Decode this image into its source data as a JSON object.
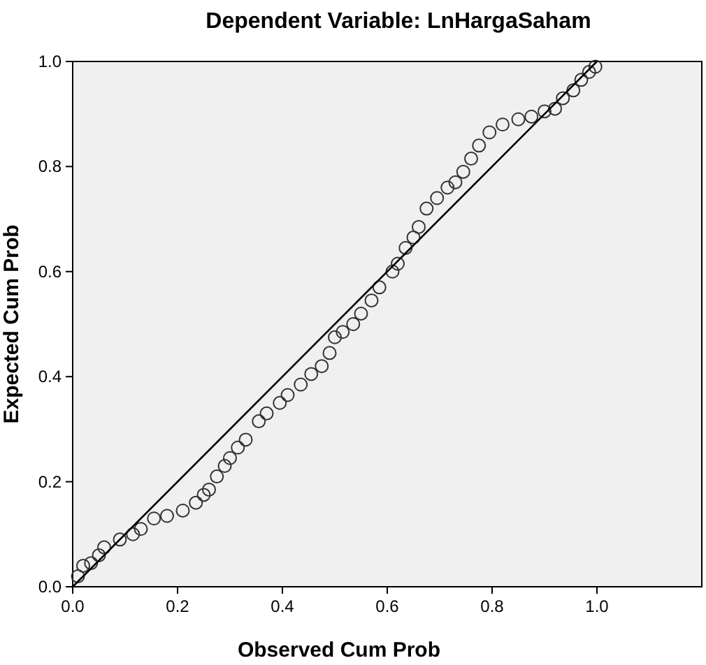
{
  "chart_data": {
    "type": "scatter",
    "title": "Dependent Variable: LnHargaSaham",
    "xlabel": "Observed Cum Prob",
    "ylabel": "Expected Cum Prob",
    "xlim": [
      0,
      1.2
    ],
    "ylim": [
      0,
      1
    ],
    "xticks": [
      {
        "value": 0,
        "label": "0.0"
      },
      {
        "value": 0.2,
        "label": "0.2"
      },
      {
        "value": 0.4,
        "label": "0.4"
      },
      {
        "value": 0.6,
        "label": "0.6"
      },
      {
        "value": 0.8,
        "label": "0.8"
      },
      {
        "value": 1,
        "label": "1.0"
      }
    ],
    "yticks": [
      {
        "value": 0,
        "label": "0.0"
      },
      {
        "value": 0.2,
        "label": "0.2"
      },
      {
        "value": 0.4,
        "label": "0.4"
      },
      {
        "value": 0.6,
        "label": "0.6"
      },
      {
        "value": 0.8,
        "label": "0.8"
      },
      {
        "value": 1,
        "label": "1.0"
      }
    ],
    "grid": false,
    "series": [
      {
        "color": "#333333",
        "marker": "circle",
        "x": [
          0.01,
          0.02,
          0.035,
          0.05,
          0.06,
          0.09,
          0.115,
          0.13,
          0.155,
          0.18,
          0.21,
          0.235,
          0.25,
          0.26,
          0.275,
          0.29,
          0.3,
          0.315,
          0.33,
          0.355,
          0.37,
          0.395,
          0.41,
          0.435,
          0.455,
          0.475,
          0.49,
          0.5,
          0.515,
          0.535,
          0.55,
          0.57,
          0.585,
          0.61,
          0.62,
          0.635,
          0.65,
          0.66,
          0.675,
          0.695,
          0.715,
          0.73,
          0.745,
          0.76,
          0.775,
          0.795,
          0.82,
          0.85,
          0.875,
          0.9,
          0.92,
          0.935,
          0.955,
          0.97,
          0.985,
          0.997
        ],
        "values": [
          0.02,
          0.04,
          0.045,
          0.06,
          0.075,
          0.09,
          0.1,
          0.11,
          0.13,
          0.135,
          0.145,
          0.16,
          0.175,
          0.185,
          0.21,
          0.23,
          0.245,
          0.265,
          0.28,
          0.315,
          0.33,
          0.35,
          0.365,
          0.385,
          0.405,
          0.42,
          0.445,
          0.475,
          0.485,
          0.5,
          0.52,
          0.545,
          0.57,
          0.6,
          0.615,
          0.645,
          0.665,
          0.685,
          0.72,
          0.74,
          0.76,
          0.77,
          0.79,
          0.815,
          0.84,
          0.865,
          0.88,
          0.89,
          0.895,
          0.905,
          0.91,
          0.93,
          0.945,
          0.965,
          0.98,
          0.99
        ]
      },
      {
        "type": "line",
        "color": "#000000",
        "marker": "none",
        "line_style": "solid",
        "x": [
          0,
          1
        ],
        "values": [
          0,
          1
        ]
      }
    ]
  }
}
